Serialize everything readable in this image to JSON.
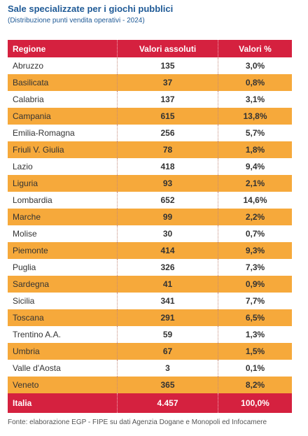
{
  "title": "Sale specializzate per i giochi pubblici",
  "subtitle": "(Distribuzione punti vendita operativi - 2024)",
  "columns": [
    "Regione",
    "Valori assoluti",
    "Valori %"
  ],
  "rows": [
    {
      "region": "Abruzzo",
      "abs": "135",
      "pct": "3,0%"
    },
    {
      "region": "Basilicata",
      "abs": "37",
      "pct": "0,8%"
    },
    {
      "region": "Calabria",
      "abs": "137",
      "pct": "3,1%"
    },
    {
      "region": "Campania",
      "abs": "615",
      "pct": "13,8%"
    },
    {
      "region": "Emilia-Romagna",
      "abs": "256",
      "pct": "5,7%"
    },
    {
      "region": "Friuli V. Giulia",
      "abs": "78",
      "pct": "1,8%"
    },
    {
      "region": "Lazio",
      "abs": "418",
      "pct": "9,4%"
    },
    {
      "region": "Liguria",
      "abs": "93",
      "pct": "2,1%"
    },
    {
      "region": "Lombardia",
      "abs": "652",
      "pct": "14,6%"
    },
    {
      "region": "Marche",
      "abs": "99",
      "pct": "2,2%"
    },
    {
      "region": "Molise",
      "abs": "30",
      "pct": "0,7%"
    },
    {
      "region": "Piemonte",
      "abs": "414",
      "pct": "9,3%"
    },
    {
      "region": "Puglia",
      "abs": "326",
      "pct": "7,3%"
    },
    {
      "region": "Sardegna",
      "abs": "41",
      "pct": "0,9%"
    },
    {
      "region": "Sicilia",
      "abs": "341",
      "pct": "7,7%"
    },
    {
      "region": "Toscana",
      "abs": "291",
      "pct": "6,5%"
    },
    {
      "region": "Trentino A.A.",
      "abs": "59",
      "pct": "1,3%"
    },
    {
      "region": "Umbria",
      "abs": "67",
      "pct": "1,5%"
    },
    {
      "region": "Valle d'Aosta",
      "abs": "3",
      "pct": "0,1%"
    },
    {
      "region": "Veneto",
      "abs": "365",
      "pct": "8,2%"
    }
  ],
  "total": {
    "region": "Italia",
    "abs": "4.457",
    "pct": "100,0%"
  },
  "source": "Fonte: elaborazione EGP - FIPE su dati Agenzia Dogane e Monopoli ed Infocamere",
  "colors": {
    "header": "#d5213f",
    "stripe": "#f6a93b",
    "title": "#1f5a96"
  }
}
